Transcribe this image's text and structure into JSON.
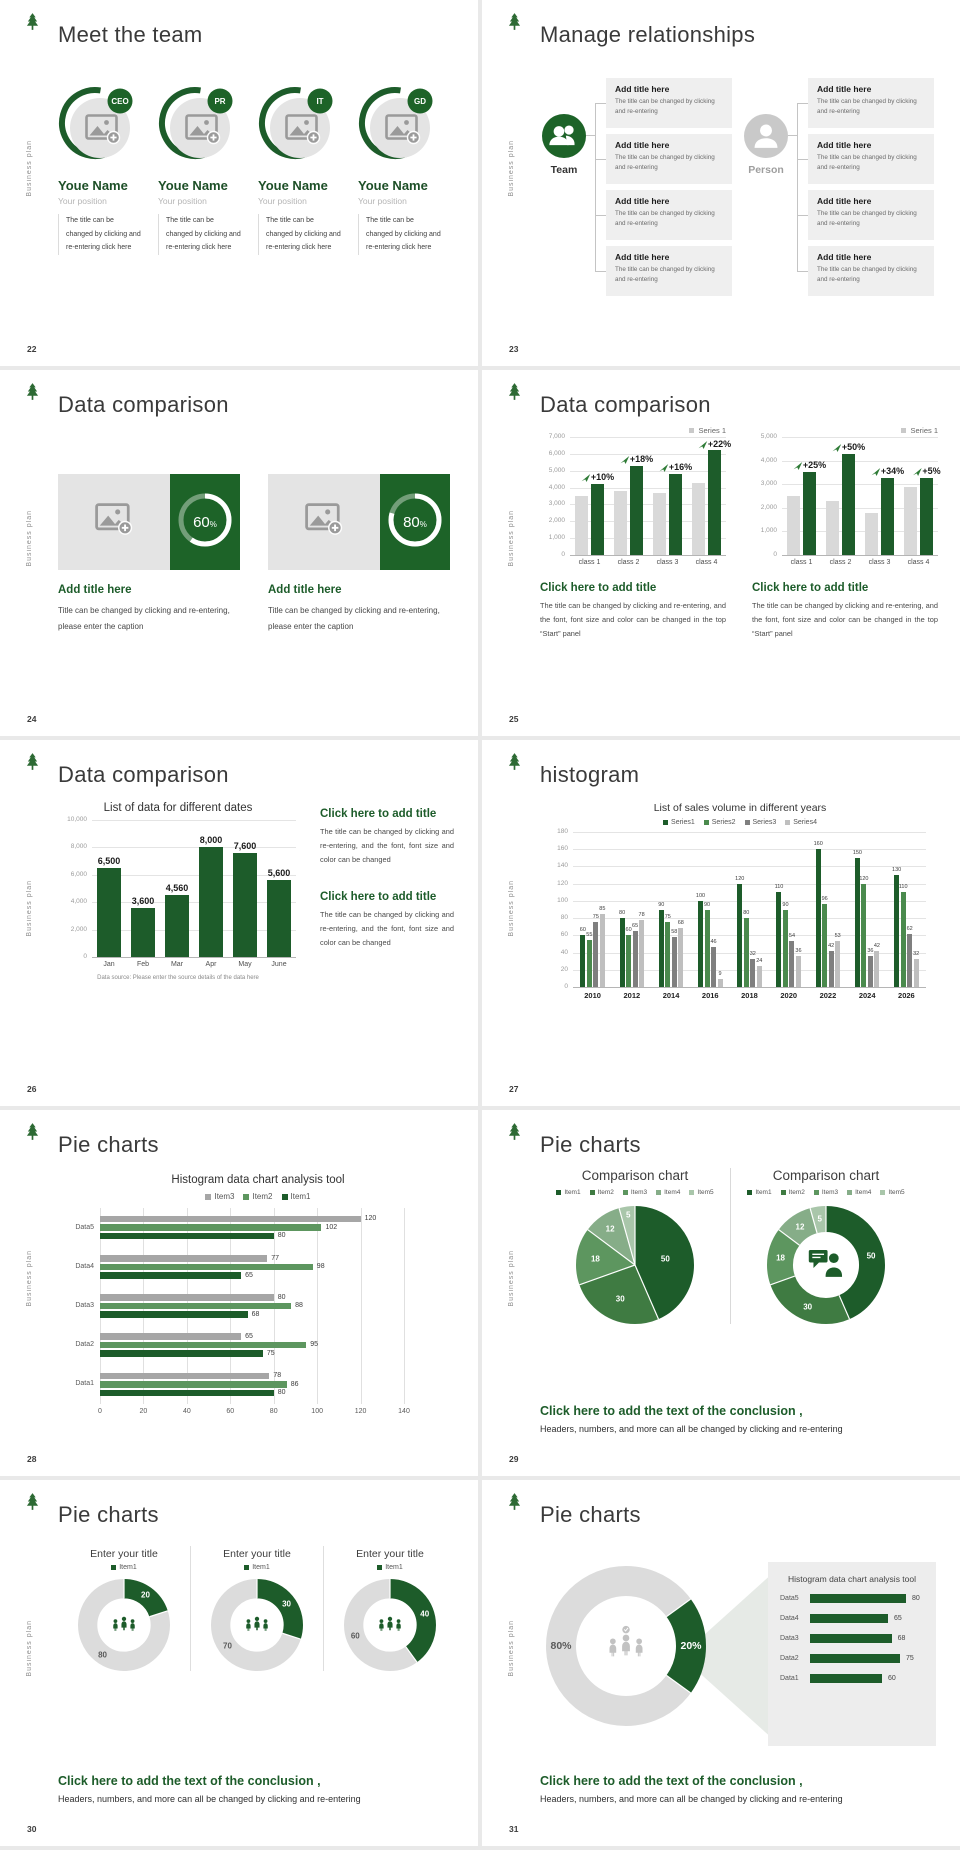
{
  "common": {
    "side_label": "Business plan",
    "brand_color": "#1d5c2a"
  },
  "colors": {
    "green_dark": "#1d5c2a",
    "green_badge": "#1d6328",
    "green_mid": "#4a8a4d",
    "green_item2_pie": "#3f7b42",
    "green_light": "#5d965f",
    "green_lighter": "#86ad88",
    "green_lightest": "#a9c6aa",
    "bar_gray": "#d9d9d9",
    "series_gray_dark": "#7f7f7f",
    "series_gray_light": "#bfbfbf",
    "legend_gray": "#a6a6a6",
    "donut_gray": "#dcdcdc"
  },
  "slides": {
    "s22": {
      "number": "22",
      "title": "Meet the team",
      "members": [
        {
          "badge": "CEO",
          "name": "Youe Name",
          "position": "Your position",
          "desc": "The title can be changed by clicking and re-entering click here"
        },
        {
          "badge": "PR",
          "name": "Youe Name",
          "position": "Your position",
          "desc": "The title can be changed by clicking and re-entering click here"
        },
        {
          "badge": "IT",
          "name": "Youe Name",
          "position": "Your position",
          "desc": "The title can be changed by clicking and re-entering click here"
        },
        {
          "badge": "GD",
          "name": "Youe Name",
          "position": "Your position",
          "desc": "The title can be changed by clicking and re-entering click here"
        }
      ]
    },
    "s23": {
      "number": "23",
      "title": "Manage relationships",
      "groups": [
        {
          "icon": "team-icon",
          "label": "Team"
        },
        {
          "icon": "person-icon",
          "label": "Person"
        }
      ],
      "box_title": "Add title here",
      "box_text": "The title can be changed by clicking and re-entering",
      "boxes_per_group": 4
    },
    "s24": {
      "number": "24",
      "title": "Data comparison",
      "blocks": [
        {
          "percent": 60,
          "heading": "Add title here",
          "caption": "Title can be changed by clicking and re-entering, please enter the caption"
        },
        {
          "percent": 80,
          "heading": "Add title here",
          "caption": "Title can be changed by clicking and re-entering, please enter the caption"
        }
      ]
    },
    "s25": {
      "number": "25",
      "title": "Data comparison",
      "legend": "Series 1",
      "heading": "Click here to add title",
      "body": "The title can be changed by clicking and re-entering, and the font, font size and color can be changed in the top “Start” panel",
      "charts": [
        {
          "ymax": 7000,
          "ytick_step": 1000,
          "categories": [
            "class 1",
            "class 2",
            "class 3",
            "class 4"
          ],
          "gray_values": [
            3500,
            3800,
            3700,
            4300
          ],
          "green_values": [
            4200,
            5300,
            4800,
            6200
          ],
          "growth_labels": [
            "+10%",
            "+18%",
            "+16%",
            "+22%"
          ]
        },
        {
          "ymax": 5000,
          "ytick_step": 1000,
          "categories": [
            "class 1",
            "class 2",
            "class 3",
            "class 4"
          ],
          "gray_values": [
            2500,
            2300,
            1800,
            2900
          ],
          "green_values": [
            3500,
            4300,
            3250,
            3250
          ],
          "growth_labels": [
            "+25%",
            "+50%",
            "+34%",
            "+5%"
          ]
        }
      ]
    },
    "s26": {
      "number": "26",
      "title": "Data comparison",
      "chart_title": "List of data for different dates",
      "categories": [
        "Jan",
        "Feb",
        "Mar",
        "Apr",
        "May",
        "June"
      ],
      "values": [
        6500,
        3600,
        4560,
        8000,
        7600,
        5600
      ],
      "value_labels": [
        "6,500",
        "3,600",
        "4,560",
        "8,000",
        "7,600",
        "5,600"
      ],
      "ymax": 10000,
      "ytick_step": 2000,
      "ytick_labels": [
        "0",
        "2,000",
        "4,000",
        "6,000",
        "8,000",
        "10,000"
      ],
      "footnote": "Data source: Please enter the source details of the data here",
      "blocks": [
        {
          "heading": "Click here to add title",
          "body": "The title can be changed by clicking and re-entering, and the font, font size and color can be changed"
        },
        {
          "heading": "Click here to add title",
          "body": "The title can be changed by clicking and re-entering, and the font, font size and color can be changed"
        }
      ]
    },
    "s27": {
      "number": "27",
      "title": "histogram",
      "chart_title": "List of sales volume in different years",
      "categories": [
        "2010",
        "2012",
        "2014",
        "2016",
        "2018",
        "2020",
        "2022",
        "2024",
        "2026"
      ],
      "series": [
        {
          "name": "Series1",
          "values": [
            60,
            80,
            90,
            100,
            120,
            110,
            160,
            150,
            130
          ]
        },
        {
          "name": "Series2",
          "values": [
            55,
            60,
            75,
            90,
            80,
            90,
            96,
            120,
            110
          ]
        },
        {
          "name": "Series3",
          "values": [
            75,
            65,
            58,
            46,
            32,
            54,
            42,
            36,
            62
          ]
        },
        {
          "name": "Series4",
          "values": [
            85,
            78,
            68,
            9,
            24,
            36,
            53,
            42,
            32
          ]
        }
      ],
      "ymax": 180,
      "ytick_step": 20
    },
    "s28": {
      "number": "28",
      "title": "Pie charts",
      "chart_title": "Histogram data chart analysis tool",
      "categories": [
        "Data5",
        "Data4",
        "Data3",
        "Data2",
        "Data1"
      ],
      "series": [
        {
          "name": "Item3",
          "values": [
            120,
            77,
            80,
            65,
            78
          ]
        },
        {
          "name": "Item2",
          "values": [
            102,
            98,
            88,
            95,
            86
          ]
        },
        {
          "name": "Item1",
          "values": [
            80,
            65,
            68,
            75,
            80
          ]
        }
      ],
      "xmax": 140,
      "xtick_step": 20
    },
    "s29": {
      "number": "29",
      "title": "Pie charts",
      "chart_title": "Comparison chart",
      "legend": [
        "Item1",
        "Item2",
        "Item3",
        "Item4",
        "Item5"
      ],
      "values": [
        50,
        30,
        18,
        12,
        5
      ],
      "conclusion": {
        "heading": "Click here to add the text of the conclusion ,",
        "text": "Headers, numbers, and more can all be changed by clicking and re-entering"
      }
    },
    "s30": {
      "number": "30",
      "title": "Pie charts",
      "block_title": "Enter your title",
      "legend": "Item1",
      "donuts": [
        {
          "green": 20,
          "gray": 80
        },
        {
          "green": 30,
          "gray": 70
        },
        {
          "green": 40,
          "gray": 60
        }
      ],
      "conclusion": {
        "heading": "Click here to add the text of the conclusion ,",
        "text": "Headers, numbers, and more can all be changed by clicking and re-entering"
      }
    },
    "s31": {
      "number": "31",
      "title": "Pie charts",
      "donut": {
        "green": 20,
        "gray": 80,
        "green_label": "20%",
        "gray_label": "80%"
      },
      "panel_title": "Histogram data chart analysis tool",
      "categories": [
        "Data5",
        "Data4",
        "Data3",
        "Data2",
        "Data1"
      ],
      "values": [
        80,
        65,
        68,
        75,
        60
      ],
      "conclusion": {
        "heading": "Click here to add the text of the conclusion ,",
        "text": "Headers, numbers, and more can all be changed by clicking and re-entering"
      }
    }
  }
}
